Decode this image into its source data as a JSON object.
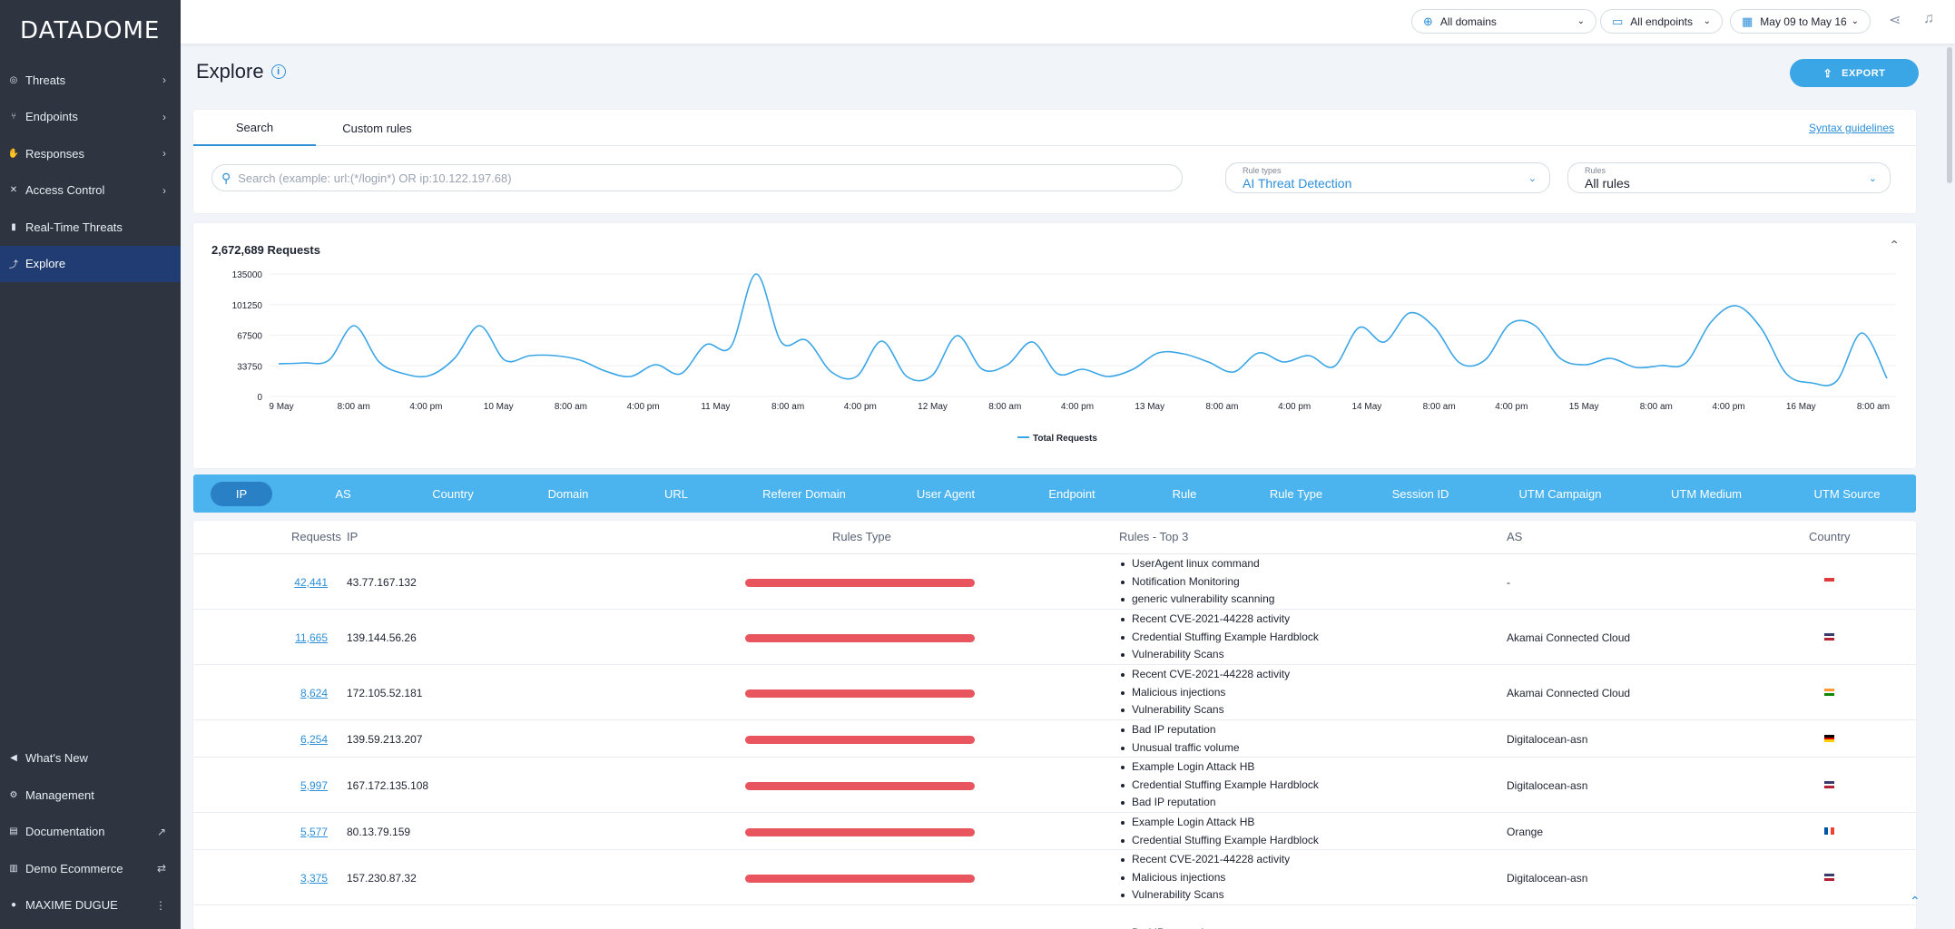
{
  "app": {
    "logo": "DATADOME"
  },
  "sidebar": {
    "items": [
      {
        "label": "Threats",
        "icon": "radar-icon",
        "glyph": "◎",
        "chevron": "›"
      },
      {
        "label": "Endpoints",
        "icon": "endpoints-icon",
        "glyph": "⑂",
        "chevron": "›"
      },
      {
        "label": "Responses",
        "icon": "hand-icon",
        "glyph": "✋",
        "chevron": "›"
      },
      {
        "label": "Access Control",
        "icon": "tools-icon",
        "glyph": "✕",
        "chevron": "›"
      },
      {
        "label": "Real-Time Threats",
        "icon": "realtime-icon",
        "glyph": "▮",
        "chevron": ""
      },
      {
        "label": "Explore",
        "icon": "explore-icon",
        "glyph": "⤴",
        "chevron": "",
        "active": true
      }
    ],
    "bottom": [
      {
        "label": "What's New",
        "icon": "megaphone-icon",
        "glyph": "◀",
        "chevron": ""
      },
      {
        "label": "Management",
        "icon": "gear-icon",
        "glyph": "⚙",
        "chevron": ""
      },
      {
        "label": "Documentation",
        "icon": "document-icon",
        "glyph": "▤",
        "chevron": "↗"
      },
      {
        "label": "Demo Ecommerce",
        "icon": "store-icon",
        "glyph": "▥",
        "chevron": "⇄"
      },
      {
        "label": "MAXIME DUGUE",
        "icon": "user-icon",
        "glyph": "●",
        "chevron": "⋮"
      }
    ]
  },
  "topbar": {
    "domains": "All domains",
    "endpoints": "All endpoints",
    "dates": "May 09 to May 16"
  },
  "page": {
    "title": "Explore",
    "export_label": "EXPORT"
  },
  "search": {
    "tabs": [
      "Search",
      "Custom rules"
    ],
    "syntax_link": "Syntax guidelines",
    "placeholder": "Search (example: url:(*/login*) OR ip:10.122.197.68)",
    "rule_types_caption": "Rule types",
    "rule_types_value": "AI Threat Detection",
    "rules_caption": "Rules",
    "rules_value": "All rules"
  },
  "chart_data": {
    "type": "line",
    "title": "2,672,689 Requests",
    "series": [
      {
        "name": "Total Requests",
        "color": "#3aa6e6",
        "values": [
          36000,
          37000,
          40000,
          78000,
          38000,
          25000,
          23000,
          42000,
          78000,
          40000,
          45000,
          45000,
          40000,
          28000,
          22000,
          35000,
          25000,
          57000,
          55000,
          135000,
          60000,
          62000,
          27000,
          22000,
          61000,
          22000,
          23000,
          67000,
          30000,
          35000,
          60000,
          25000,
          30000,
          22000,
          30000,
          48000,
          47000,
          38000,
          27000,
          48000,
          38000,
          45000,
          33000,
          76000,
          60000,
          92000,
          76000,
          37000,
          40000,
          80000,
          78000,
          42000,
          35000,
          42000,
          32000,
          34000,
          37000,
          82000,
          100000,
          75000,
          25000,
          15000,
          17000,
          70000,
          20000
        ]
      }
    ],
    "x_labels": [
      "9 May",
      "8:00 am",
      "4:00 pm",
      "10 May",
      "8:00 am",
      "4:00 pm",
      "11 May",
      "8:00 am",
      "4:00 pm",
      "12 May",
      "8:00 am",
      "4:00 pm",
      "13 May",
      "8:00 am",
      "4:00 pm",
      "14 May",
      "8:00 am",
      "4:00 pm",
      "15 May",
      "8:00 am",
      "4:00 pm",
      "16 May",
      "8:00 am"
    ],
    "y_ticks": [
      0,
      33750,
      67500,
      101250,
      135000
    ],
    "ylim": [
      0,
      135000
    ],
    "legend": "bottom-center",
    "grid": true
  },
  "dimensions": [
    "IP",
    "AS",
    "Country",
    "Domain",
    "URL",
    "Referer Domain",
    "User Agent",
    "Endpoint",
    "Rule",
    "Rule Type",
    "Session ID",
    "UTM Campaign",
    "UTM Medium",
    "UTM Source"
  ],
  "table": {
    "headers": {
      "requests": "Requests",
      "ip": "IP",
      "rules_type": "Rules Type",
      "rules_top3": "Rules - Top 3",
      "as": "AS",
      "country": "Country"
    },
    "rows": [
      {
        "requests": "42,441",
        "ip": "43.77.167.132",
        "rules": [
          "UserAgent linux command",
          "Notification Monitoring",
          "generic vulnerability scanning"
        ],
        "as": "-",
        "flag": "sg"
      },
      {
        "requests": "11,665",
        "ip": "139.144.56.26",
        "rules": [
          "Recent CVE-2021-44228 activity",
          "Credential Stuffing Example Hardblock",
          "Vulnerability Scans"
        ],
        "as": "Akamai Connected Cloud",
        "flag": "us"
      },
      {
        "requests": "8,624",
        "ip": "172.105.52.181",
        "rules": [
          "Recent CVE-2021-44228 activity",
          "Malicious injections",
          "Vulnerability Scans"
        ],
        "as": "Akamai Connected Cloud",
        "flag": "in"
      },
      {
        "requests": "6,254",
        "ip": "139.59.213.207",
        "rules": [
          "Bad IP reputation",
          "Unusual traffic volume"
        ],
        "as": "Digitalocean-asn",
        "flag": "de"
      },
      {
        "requests": "5,997",
        "ip": "167.172.135.108",
        "rules": [
          "Example Login Attack HB",
          "Credential Stuffing Example Hardblock",
          "Bad IP reputation"
        ],
        "as": "Digitalocean-asn",
        "flag": "us"
      },
      {
        "requests": "5,577",
        "ip": "80.13.79.159",
        "rules": [
          "Example Login Attack HB",
          "Credential Stuffing Example Hardblock"
        ],
        "as": "Orange",
        "flag": "fr"
      },
      {
        "requests": "3,375",
        "ip": "157.230.87.32",
        "rules": [
          "Recent CVE-2021-44228 activity",
          "Malicious injections",
          "Vulnerability Scans"
        ],
        "as": "Digitalocean-asn",
        "flag": "us"
      },
      {
        "requests": "",
        "ip": "",
        "rules": [
          "Bad IP reputation"
        ],
        "as": "",
        "flag": "us"
      }
    ]
  },
  "colors": {
    "accent": "#2c8fd8",
    "sidebar": "#2e3440",
    "sidebar_active": "#203c72",
    "dimension_bar": "#4bb3ee",
    "rules_bar": "#e9555f"
  }
}
